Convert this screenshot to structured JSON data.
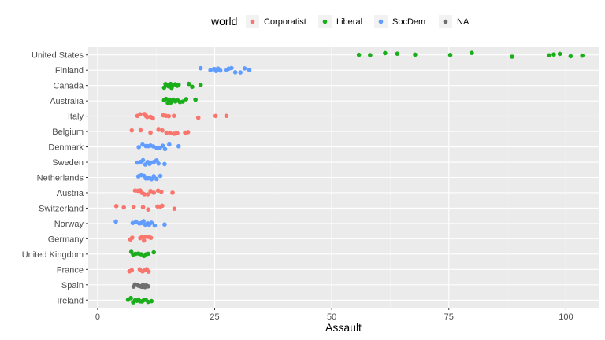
{
  "chart_data": {
    "type": "scatter",
    "xlabel": "Assault",
    "ylabel": "",
    "xlim": [
      -2,
      107
    ],
    "x_ticks": [
      0,
      25,
      50,
      75,
      100
    ],
    "grid": true,
    "legend_placement": "top",
    "legend": {
      "title": "world",
      "entries": [
        {
          "name": "Corporatist",
          "color": "#F8766D"
        },
        {
          "name": "Liberal",
          "color": "#1AAE1A"
        },
        {
          "name": "SocDem",
          "color": "#619CFF"
        },
        {
          "name": "NA",
          "color": "#6E6E6E"
        }
      ]
    },
    "countries": [
      {
        "name": "United States",
        "world": "Liberal",
        "values": [
          55.8,
          58.2,
          61.4,
          64.0,
          67.8,
          75.3,
          79.9,
          88.5,
          96.4,
          97.4,
          98.7,
          101.0,
          103.5
        ]
      },
      {
        "name": "Finland",
        "world": "SocDem",
        "values": [
          22.0,
          24.1,
          24.9,
          25.3,
          25.7,
          26.2,
          27.4,
          28.0,
          28.6,
          29.4,
          30.5,
          31.4,
          32.4
        ]
      },
      {
        "name": "Canada",
        "world": "Liberal",
        "values": [
          14.2,
          14.5,
          14.8,
          15.0,
          15.2,
          15.4,
          15.6,
          15.8,
          16.0,
          16.6,
          17.0,
          17.3,
          19.5,
          20.2,
          22.0
        ]
      },
      {
        "name": "Australia",
        "world": "Liberal",
        "values": [
          14.2,
          14.6,
          15.0,
          15.3,
          15.6,
          15.9,
          16.2,
          16.6,
          17.1,
          17.6,
          18.2,
          18.9,
          20.9
        ]
      },
      {
        "name": "Italy",
        "world": "Corporatist",
        "values": [
          8.5,
          9.1,
          10.0,
          10.3,
          10.6,
          11.3,
          11.8,
          14.0,
          14.6,
          15.2,
          16.3,
          21.5,
          25.2,
          27.5
        ]
      },
      {
        "name": "Belgium",
        "world": "Corporatist",
        "values": [
          7.3,
          9.2,
          11.3,
          13.0,
          13.8,
          14.7,
          15.5,
          16.3,
          16.7,
          17.0,
          18.7,
          19.3
        ]
      },
      {
        "name": "Denmark",
        "world": "SocDem",
        "values": [
          8.8,
          9.6,
          10.3,
          10.8,
          11.3,
          11.9,
          12.6,
          13.3,
          13.9,
          14.4,
          15.3,
          17.3
        ]
      },
      {
        "name": "Sweden",
        "world": "SocDem",
        "values": [
          8.5,
          9.2,
          9.7,
          10.2,
          10.7,
          11.1,
          11.5,
          12.0,
          12.6,
          13.0,
          14.3
        ]
      },
      {
        "name": "Netherlands",
        "world": "SocDem",
        "values": [
          8.7,
          9.3,
          9.9,
          10.3,
          10.7,
          11.1,
          11.5,
          12.0,
          12.6,
          13.4
        ]
      },
      {
        "name": "Austria",
        "world": "Corporatist",
        "values": [
          8.0,
          8.6,
          9.1,
          9.5,
          10.0,
          10.7,
          11.3,
          12.0,
          12.9,
          13.6,
          16.0
        ]
      },
      {
        "name": "Switzerland",
        "world": "Corporatist",
        "values": [
          4.0,
          5.6,
          7.7,
          9.7,
          10.8,
          12.8,
          13.4,
          13.8,
          16.4
        ]
      },
      {
        "name": "Norway",
        "world": "SocDem",
        "values": [
          3.9,
          7.5,
          8.2,
          8.9,
          9.3,
          9.8,
          10.2,
          10.7,
          11.0,
          11.5,
          12.2,
          14.3
        ]
      },
      {
        "name": "Germany",
        "world": "Corporatist",
        "values": [
          7.0,
          7.4,
          9.1,
          9.5,
          9.9,
          10.3,
          10.7,
          11.1,
          11.4
        ]
      },
      {
        "name": "United Kingdom",
        "world": "Liberal",
        "values": [
          7.2,
          7.6,
          8.1,
          8.7,
          9.3,
          9.9,
          10.4,
          10.8,
          12.0
        ]
      },
      {
        "name": "France",
        "world": "Corporatist",
        "values": [
          6.8,
          7.3,
          9.0,
          9.6,
          10.1,
          10.5,
          10.9
        ]
      },
      {
        "name": "Spain",
        "world": "NA",
        "values": [
          7.7,
          8.0,
          8.4,
          8.7,
          9.1,
          9.4,
          9.7,
          10.1,
          10.4,
          10.8
        ]
      },
      {
        "name": "Ireland",
        "world": "Liberal",
        "values": [
          6.5,
          7.1,
          7.6,
          8.0,
          8.4,
          8.7,
          9.1,
          9.5,
          9.9,
          10.3,
          10.8,
          11.5
        ]
      }
    ]
  }
}
